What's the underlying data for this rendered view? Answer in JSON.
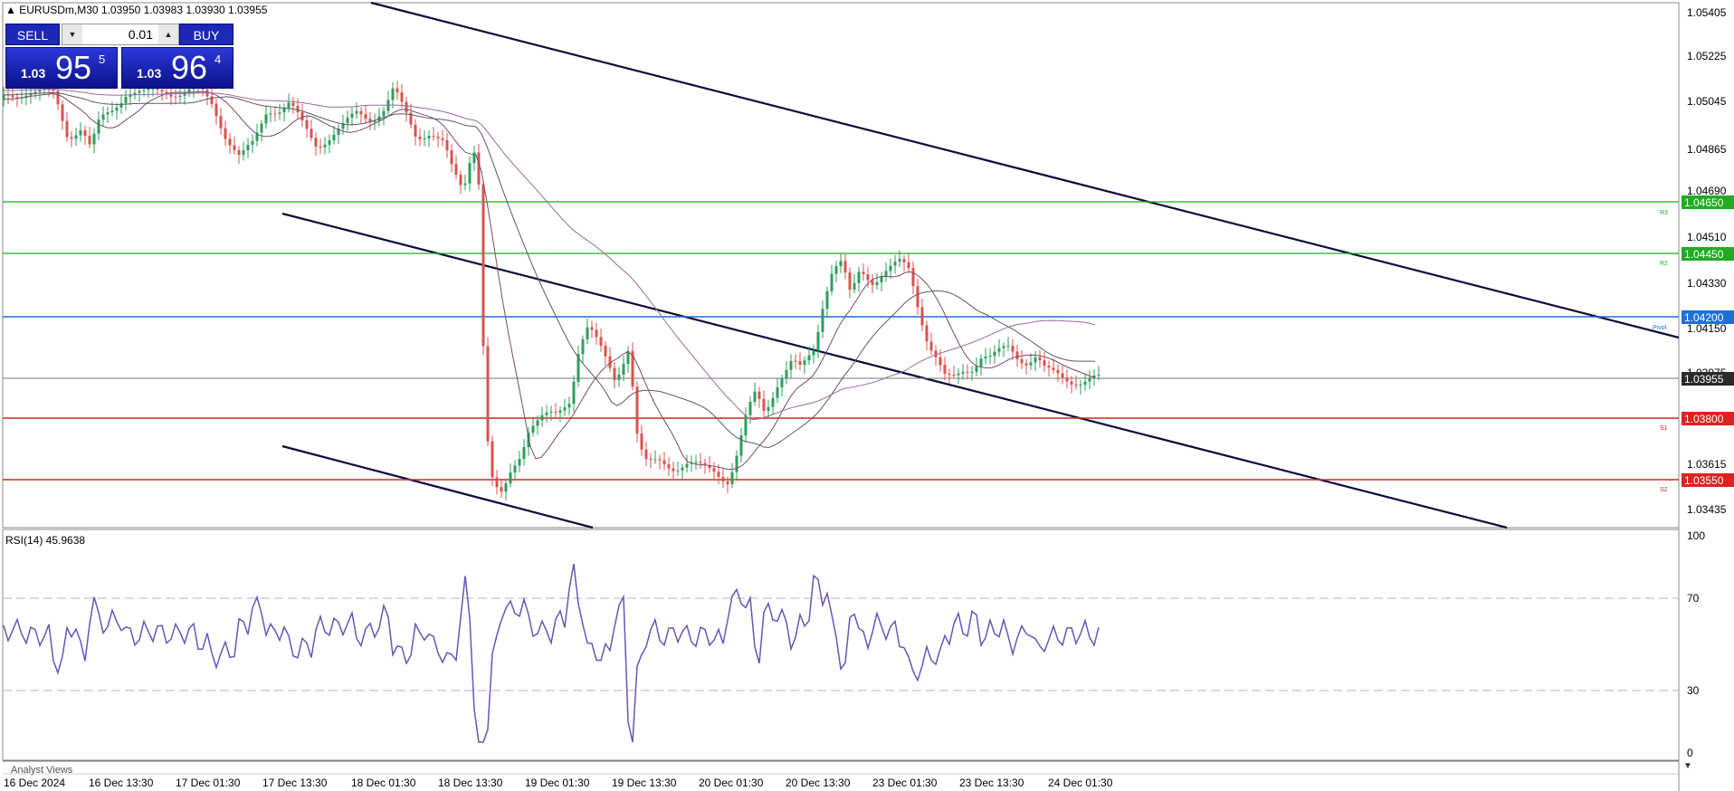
{
  "header": {
    "symbol_caption": "EURUSDm,M30  1.03950 1.03983 1.03930 1.03955"
  },
  "trade_panel": {
    "sell_label": "SELL",
    "buy_label": "BUY",
    "lot_value": "0.01",
    "sell_price": {
      "prefix": "1.03",
      "big": "95",
      "sup": "5"
    },
    "buy_price": {
      "prefix": "1.03",
      "big": "96",
      "sup": "4"
    }
  },
  "price_axis": {
    "ticks": [
      "1.05405",
      "1.05225",
      "1.05045",
      "1.04865",
      "1.04690",
      "1.04510",
      "1.04330",
      "1.04150",
      "1.03975",
      "1.03615",
      "1.03435"
    ]
  },
  "levels": [
    {
      "label": "1.04650",
      "tag": "R3",
      "color": "#22aa22"
    },
    {
      "label": "1.04450",
      "tag": "R2",
      "color": "#22aa22"
    },
    {
      "label": "1.04200",
      "tag": "Pivot",
      "color": "#1e6fd9"
    },
    {
      "label": "1.03800",
      "tag": "S1",
      "color": "#dd2222"
    },
    {
      "label": "1.03550",
      "tag": "S2",
      "color": "#dd2222"
    }
  ],
  "current_price": {
    "label": "1.03955",
    "color": "#2a2a2a"
  },
  "rsi": {
    "title": "RSI(14) 45.9638",
    "value": 45.9638,
    "axis_ticks": [
      "100",
      "70",
      "30",
      "0"
    ]
  },
  "time_axis": {
    "labels": [
      "16 Dec 2024",
      "16 Dec 13:30",
      "17 Dec 01:30",
      "17 Dec 13:30",
      "18 Dec 01:30",
      "18 Dec 13:30",
      "19 Dec 01:30",
      "19 Dec 13:30",
      "20 Dec 01:30",
      "20 Dec 13:30",
      "23 Dec 01:30",
      "23 Dec 13:30",
      "24 Dec 01:30"
    ]
  },
  "footer": {
    "analyst_views": "Analyst Views"
  },
  "colors": {
    "bull": "#2e9e5c",
    "bear": "#d9534f",
    "channel": "#0b0b3b",
    "ma": "#7a4a6a",
    "rsi": "#6a55b5"
  }
}
